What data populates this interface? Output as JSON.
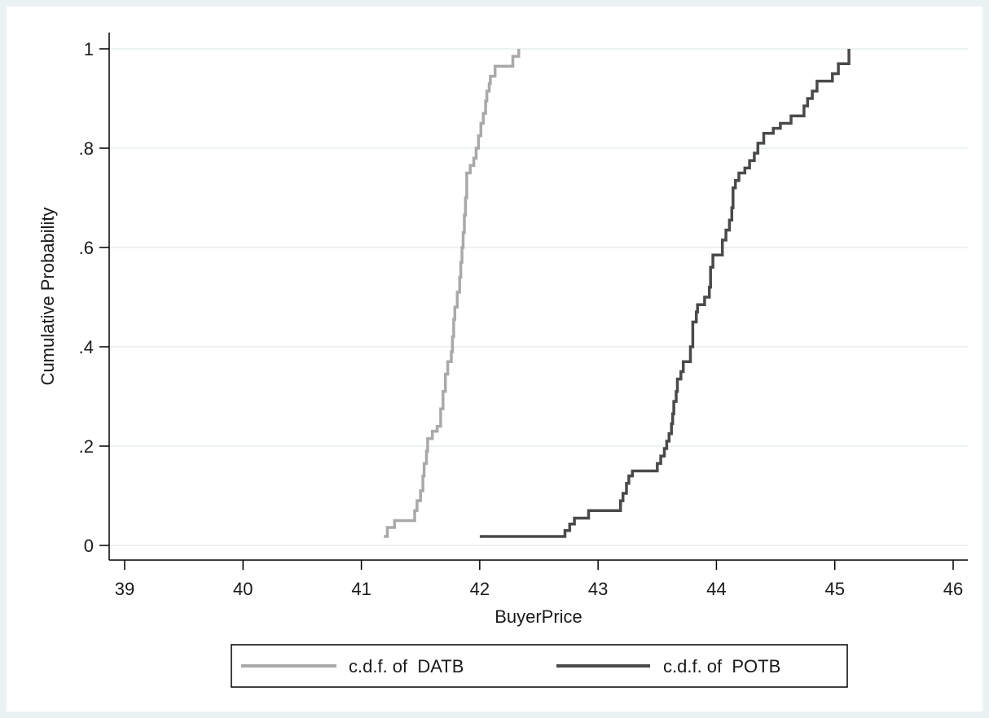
{
  "chart_data": {
    "type": "line",
    "title": "",
    "xlabel": "BuyerPrice",
    "ylabel": "Cumulative Probability",
    "xlim": [
      39,
      46
    ],
    "ylim": [
      0,
      1
    ],
    "x_ticks": [
      39,
      40,
      41,
      42,
      43,
      44,
      45,
      46
    ],
    "x_tick_labels": [
      "39",
      "40",
      "41",
      "42",
      "43",
      "44",
      "45",
      "46"
    ],
    "y_ticks": [
      0,
      0.2,
      0.4,
      0.6,
      0.8,
      1
    ],
    "y_tick_labels": [
      "0",
      ".2",
      ".4",
      ".6",
      ".8",
      "1"
    ],
    "grid": "horizontal",
    "legend_position": "bottom",
    "series": [
      {
        "name": "c.d.f. of  DATB",
        "color": "#a9a9a9",
        "step": true,
        "points": [
          [
            41.19,
            0.018
          ],
          [
            41.22,
            0.036
          ],
          [
            41.28,
            0.05
          ],
          [
            41.45,
            0.07
          ],
          [
            41.47,
            0.09
          ],
          [
            41.5,
            0.11
          ],
          [
            41.52,
            0.14
          ],
          [
            41.53,
            0.165
          ],
          [
            41.55,
            0.19
          ],
          [
            41.56,
            0.215
          ],
          [
            41.6,
            0.23
          ],
          [
            41.64,
            0.24
          ],
          [
            41.67,
            0.275
          ],
          [
            41.69,
            0.31
          ],
          [
            41.71,
            0.345
          ],
          [
            41.73,
            0.37
          ],
          [
            41.76,
            0.39
          ],
          [
            41.77,
            0.42
          ],
          [
            41.78,
            0.455
          ],
          [
            41.79,
            0.48
          ],
          [
            41.81,
            0.51
          ],
          [
            41.83,
            0.54
          ],
          [
            41.84,
            0.57
          ],
          [
            41.85,
            0.6
          ],
          [
            41.86,
            0.63
          ],
          [
            41.87,
            0.665
          ],
          [
            41.88,
            0.7
          ],
          [
            41.89,
            0.75
          ],
          [
            41.92,
            0.765
          ],
          [
            41.95,
            0.78
          ],
          [
            41.97,
            0.8
          ],
          [
            41.99,
            0.825
          ],
          [
            42.01,
            0.85
          ],
          [
            42.03,
            0.87
          ],
          [
            42.05,
            0.895
          ],
          [
            42.06,
            0.915
          ],
          [
            42.08,
            0.93
          ],
          [
            42.09,
            0.945
          ],
          [
            42.13,
            0.965
          ],
          [
            42.28,
            0.985
          ],
          [
            42.33,
            1.0
          ]
        ]
      },
      {
        "name": "c.d.f. of  POTB",
        "color": "#4a4a4a",
        "step": true,
        "points": [
          [
            42.0,
            0.018
          ],
          [
            42.72,
            0.03
          ],
          [
            42.76,
            0.043
          ],
          [
            42.8,
            0.055
          ],
          [
            42.92,
            0.07
          ],
          [
            43.19,
            0.09
          ],
          [
            43.21,
            0.105
          ],
          [
            43.24,
            0.125
          ],
          [
            43.26,
            0.14
          ],
          [
            43.29,
            0.15
          ],
          [
            43.5,
            0.165
          ],
          [
            43.53,
            0.18
          ],
          [
            43.56,
            0.195
          ],
          [
            43.58,
            0.21
          ],
          [
            43.6,
            0.225
          ],
          [
            43.62,
            0.245
          ],
          [
            43.63,
            0.265
          ],
          [
            43.64,
            0.29
          ],
          [
            43.66,
            0.31
          ],
          [
            43.67,
            0.335
          ],
          [
            43.7,
            0.35
          ],
          [
            43.72,
            0.37
          ],
          [
            43.78,
            0.4
          ],
          [
            43.8,
            0.45
          ],
          [
            43.83,
            0.47
          ],
          [
            43.84,
            0.485
          ],
          [
            43.9,
            0.5
          ],
          [
            43.94,
            0.52
          ],
          [
            43.95,
            0.56
          ],
          [
            43.97,
            0.585
          ],
          [
            44.05,
            0.615
          ],
          [
            44.08,
            0.635
          ],
          [
            44.11,
            0.655
          ],
          [
            44.13,
            0.68
          ],
          [
            44.14,
            0.72
          ],
          [
            44.16,
            0.735
          ],
          [
            44.19,
            0.75
          ],
          [
            44.24,
            0.76
          ],
          [
            44.28,
            0.775
          ],
          [
            44.32,
            0.79
          ],
          [
            44.35,
            0.81
          ],
          [
            44.4,
            0.83
          ],
          [
            44.48,
            0.84
          ],
          [
            44.54,
            0.85
          ],
          [
            44.63,
            0.865
          ],
          [
            44.74,
            0.885
          ],
          [
            44.77,
            0.9
          ],
          [
            44.81,
            0.915
          ],
          [
            44.85,
            0.935
          ],
          [
            44.98,
            0.95
          ],
          [
            45.03,
            0.97
          ],
          [
            45.12,
            1.0
          ]
        ]
      }
    ]
  }
}
